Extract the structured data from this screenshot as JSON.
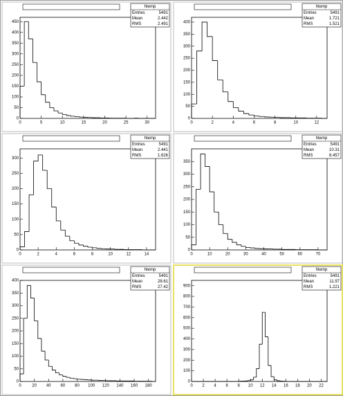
{
  "chart_data": [
    {
      "type": "histogram",
      "color": "#000000",
      "bins": [
        0,
        1,
        2,
        3,
        4,
        5,
        6,
        7,
        8,
        9,
        10,
        11,
        12,
        13,
        14,
        15,
        16,
        17,
        18,
        19,
        20,
        21,
        22,
        23,
        24,
        25,
        26,
        27,
        28,
        29,
        30,
        31,
        32
      ],
      "counts": [
        150,
        450,
        370,
        260,
        170,
        110,
        75,
        50,
        35,
        25,
        18,
        13,
        10,
        8,
        6,
        5,
        4,
        3,
        3,
        2,
        2,
        1,
        1,
        1,
        1,
        0,
        0,
        1,
        0,
        0,
        0,
        0
      ],
      "xlim": [
        0,
        32
      ],
      "ylim": [
        0,
        470
      ],
      "xticks": [
        0,
        5,
        10,
        15,
        20,
        25,
        30
      ],
      "yticks": [
        0,
        50,
        100,
        150,
        200,
        250,
        300,
        350,
        400,
        450
      ],
      "stats": {
        "name": "htemp",
        "labels": [
          "Entries",
          "Mean",
          "RMS"
        ],
        "values": [
          5491,
          2.442,
          2.491
        ]
      }
    },
    {
      "type": "histogram",
      "color": "#000000",
      "bins": [
        0,
        0.5,
        1,
        1.5,
        2,
        2.5,
        3,
        3.5,
        4,
        4.5,
        5,
        5.5,
        6,
        6.5,
        7,
        7.5,
        8,
        8.5,
        9,
        9.5,
        10,
        10.5,
        11,
        11.5,
        12,
        12.5,
        13
      ],
      "counts": [
        60,
        280,
        400,
        340,
        240,
        160,
        110,
        70,
        45,
        30,
        20,
        14,
        10,
        8,
        6,
        5,
        4,
        3,
        3,
        2,
        2,
        2,
        1,
        1,
        1,
        0
      ],
      "xlim": [
        0,
        13
      ],
      "ylim": [
        0,
        420
      ],
      "xticks": [
        0,
        2,
        4,
        6,
        8,
        10,
        12
      ],
      "yticks": [
        0,
        50,
        100,
        150,
        200,
        250,
        300,
        350,
        400
      ],
      "stats": {
        "name": "htemp",
        "labels": [
          "Entries",
          "Mean",
          "RMS"
        ],
        "values": [
          5491,
          1.721,
          1.521
        ]
      }
    },
    {
      "type": "histogram",
      "color": "#000000",
      "bins": [
        0,
        0.5,
        1,
        1.5,
        2,
        2.5,
        3,
        3.5,
        4,
        4.5,
        5,
        5.5,
        6,
        6.5,
        7,
        7.5,
        8,
        8.5,
        9,
        9.5,
        10,
        10.5,
        11,
        11.5,
        12,
        12.5,
        13,
        13.5,
        14,
        14.5,
        15
      ],
      "counts": [
        10,
        60,
        180,
        290,
        310,
        260,
        200,
        140,
        95,
        65,
        45,
        30,
        22,
        16,
        12,
        9,
        7,
        5,
        4,
        3,
        3,
        2,
        2,
        1,
        1,
        1,
        1,
        0,
        0,
        0
      ],
      "xlim": [
        0,
        15
      ],
      "ylim": [
        0,
        330
      ],
      "xticks": [
        0,
        2,
        4,
        6,
        8,
        10,
        12,
        14
      ],
      "yticks": [
        0,
        50,
        100,
        150,
        200,
        250,
        300
      ],
      "stats": {
        "name": "htemp",
        "labels": [
          "Entries",
          "Mean",
          "RMS"
        ],
        "values": [
          5491,
          2.441,
          1.626
        ]
      }
    },
    {
      "type": "histogram",
      "color": "#000000",
      "bins": [
        0,
        2.5,
        5,
        7.5,
        10,
        12.5,
        15,
        17.5,
        20,
        22.5,
        25,
        27.5,
        30,
        32.5,
        35,
        37.5,
        40,
        42.5,
        45,
        47.5,
        50,
        52.5,
        55,
        57.5,
        60,
        62.5,
        65,
        67.5,
        70,
        72.5,
        75
      ],
      "counts": [
        20,
        240,
        380,
        330,
        230,
        150,
        100,
        65,
        42,
        30,
        20,
        14,
        10,
        8,
        6,
        5,
        4,
        4,
        3,
        3,
        2,
        2,
        2,
        1,
        1,
        1,
        1,
        1,
        0,
        0
      ],
      "xlim": [
        0,
        75
      ],
      "ylim": [
        0,
        400
      ],
      "xticks": [
        0,
        10,
        20,
        30,
        40,
        50,
        60,
        70
      ],
      "yticks": [
        0,
        50,
        100,
        150,
        200,
        250,
        300,
        350
      ],
      "stats": {
        "name": "htemp",
        "labels": [
          "Entries",
          "Mean",
          "RMS"
        ],
        "values": [
          5491,
          10.31,
          8.457
        ]
      }
    },
    {
      "type": "histogram",
      "color": "#000000",
      "bins": [
        0,
        5,
        10,
        15,
        20,
        25,
        30,
        35,
        40,
        45,
        50,
        55,
        60,
        65,
        70,
        75,
        80,
        85,
        90,
        95,
        100,
        105,
        110,
        115,
        120,
        125,
        130,
        135,
        140,
        145,
        150,
        155,
        160,
        165,
        170,
        175,
        180,
        185,
        190
      ],
      "counts": [
        30,
        250,
        380,
        330,
        240,
        170,
        120,
        85,
        60,
        45,
        34,
        26,
        20,
        16,
        13,
        11,
        9,
        8,
        7,
        6,
        5,
        5,
        4,
        4,
        3,
        3,
        3,
        2,
        2,
        2,
        2,
        2,
        1,
        1,
        1,
        1,
        1,
        0
      ],
      "xlim": [
        0,
        190
      ],
      "ylim": [
        0,
        400
      ],
      "xticks": [
        0,
        20,
        40,
        60,
        80,
        100,
        120,
        140,
        160,
        180
      ],
      "yticks": [
        0,
        50,
        100,
        150,
        200,
        250,
        300,
        350,
        400
      ],
      "stats": {
        "name": "htemp",
        "labels": [
          "Entries",
          "Mean",
          "RMS"
        ],
        "values": [
          5491,
          28.61,
          27.42
        ]
      }
    },
    {
      "type": "histogram",
      "color": "#000000",
      "bins": [
        0,
        0.5,
        1,
        1.5,
        2,
        2.5,
        3,
        3.5,
        4,
        4.5,
        5,
        5.5,
        6,
        6.5,
        7,
        7.5,
        8,
        8.5,
        9,
        9.5,
        10,
        10.5,
        11,
        11.5,
        12,
        12.5,
        13,
        13.5,
        14,
        14.5,
        15,
        15.5,
        16,
        16.5,
        17,
        17.5,
        18,
        18.5,
        19,
        19.5,
        20,
        20.5,
        21,
        21.5,
        22,
        22.5,
        23
      ],
      "counts": [
        0,
        0,
        0,
        0,
        0,
        0,
        0,
        0,
        0,
        0,
        0,
        0,
        0,
        0,
        0,
        1,
        2,
        3,
        5,
        8,
        15,
        40,
        120,
        350,
        650,
        420,
        150,
        45,
        15,
        7,
        4,
        2,
        1,
        0,
        0,
        0,
        0,
        0,
        0,
        0,
        0,
        0,
        0,
        0,
        0,
        0
      ],
      "xlim": [
        0,
        23
      ],
      "ylim": [
        0,
        950
      ],
      "xticks": [
        0,
        2,
        4,
        6,
        8,
        10,
        12,
        14,
        16,
        18,
        20,
        22
      ],
      "yticks": [
        0,
        100,
        200,
        300,
        400,
        500,
        600,
        700,
        800,
        900
      ],
      "stats": {
        "name": "htemp",
        "labels": [
          "Entries",
          "Mean",
          "RMS"
        ],
        "values": [
          5491,
          11.97,
          1.221
        ]
      }
    }
  ]
}
